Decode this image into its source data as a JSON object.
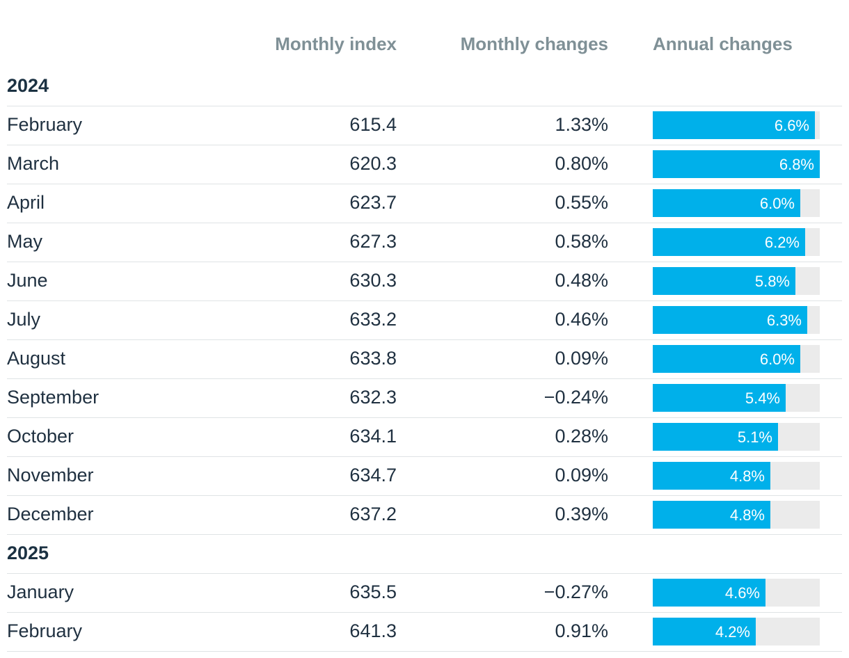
{
  "colors": {
    "bar": "#00b0ea",
    "track": "#ebebeb",
    "header": "#7f9096",
    "text": "#1f3040"
  },
  "headers": {
    "index": "Monthly index",
    "monthly": "Monthly changes",
    "annual": "Annual changes"
  },
  "chart_data": {
    "type": "table",
    "columns": [
      "Monthly index",
      "Monthly changes",
      "Annual changes"
    ],
    "annual_max": 6.8,
    "groups": [
      {
        "year": "2024",
        "rows": [
          {
            "month": "February",
            "index": "615.4",
            "monthly": "1.33%",
            "annual": 6.6,
            "annual_label": "6.6%"
          },
          {
            "month": "March",
            "index": "620.3",
            "monthly": "0.80%",
            "annual": 6.8,
            "annual_label": "6.8%"
          },
          {
            "month": "April",
            "index": "623.7",
            "monthly": "0.55%",
            "annual": 6.0,
            "annual_label": "6.0%"
          },
          {
            "month": "May",
            "index": "627.3",
            "monthly": "0.58%",
            "annual": 6.2,
            "annual_label": "6.2%"
          },
          {
            "month": "June",
            "index": "630.3",
            "monthly": "0.48%",
            "annual": 5.8,
            "annual_label": "5.8%"
          },
          {
            "month": "July",
            "index": "633.2",
            "monthly": "0.46%",
            "annual": 6.3,
            "annual_label": "6.3%"
          },
          {
            "month": "August",
            "index": "633.8",
            "monthly": "0.09%",
            "annual": 6.0,
            "annual_label": "6.0%"
          },
          {
            "month": "September",
            "index": "632.3",
            "monthly": "−0.24%",
            "annual": 5.4,
            "annual_label": "5.4%"
          },
          {
            "month": "October",
            "index": "634.1",
            "monthly": "0.28%",
            "annual": 5.1,
            "annual_label": "5.1%"
          },
          {
            "month": "November",
            "index": "634.7",
            "monthly": "0.09%",
            "annual": 4.8,
            "annual_label": "4.8%"
          },
          {
            "month": "December",
            "index": "637.2",
            "monthly": "0.39%",
            "annual": 4.8,
            "annual_label": "4.8%"
          }
        ]
      },
      {
        "year": "2025",
        "rows": [
          {
            "month": "January",
            "index": "635.5",
            "monthly": "−0.27%",
            "annual": 4.6,
            "annual_label": "4.6%"
          },
          {
            "month": "February",
            "index": "641.3",
            "monthly": "0.91%",
            "annual": 4.2,
            "annual_label": "4.2%"
          }
        ]
      }
    ]
  }
}
